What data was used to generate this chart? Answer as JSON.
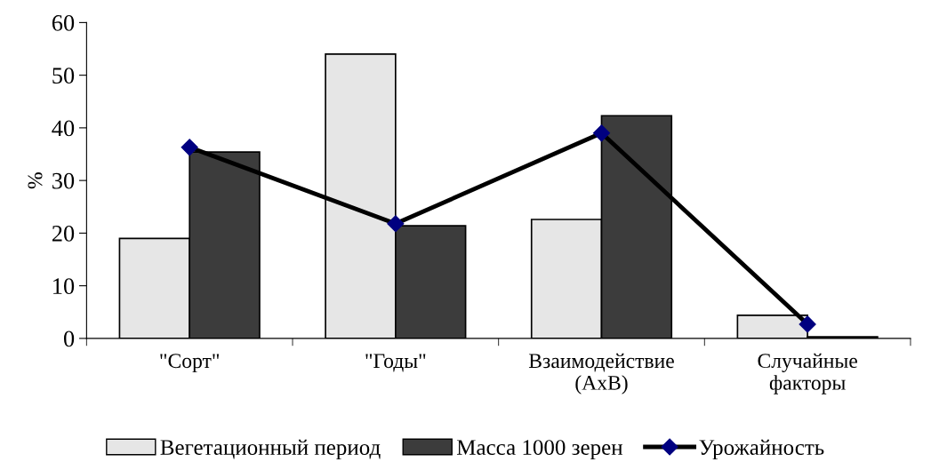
{
  "chart_data": {
    "type": "bar",
    "ylabel": "%",
    "categories": [
      "\"Сорт\"",
      "\"Годы\"",
      "Взаимодействие\n(AxB)",
      "Случайные\nфакторы"
    ],
    "series": [
      {
        "name": "Вегетационный период",
        "color": "#e6e6e6",
        "values": [
          19,
          54,
          22.6,
          4.4
        ]
      },
      {
        "name": "Масса 1000 зерен",
        "color": "#3c3c3c",
        "values": [
          35.4,
          21.4,
          42.3,
          0.3
        ]
      },
      {
        "name": "Урожайность",
        "type": "line",
        "color": "#000000",
        "marker": "diamond",
        "values": [
          36.3,
          21.8,
          39,
          2.7
        ]
      }
    ],
    "ylim": [
      0,
      60
    ],
    "yticks": [
      0,
      10,
      20,
      30,
      40,
      50,
      60
    ],
    "grid": false,
    "legend": "bottom"
  }
}
